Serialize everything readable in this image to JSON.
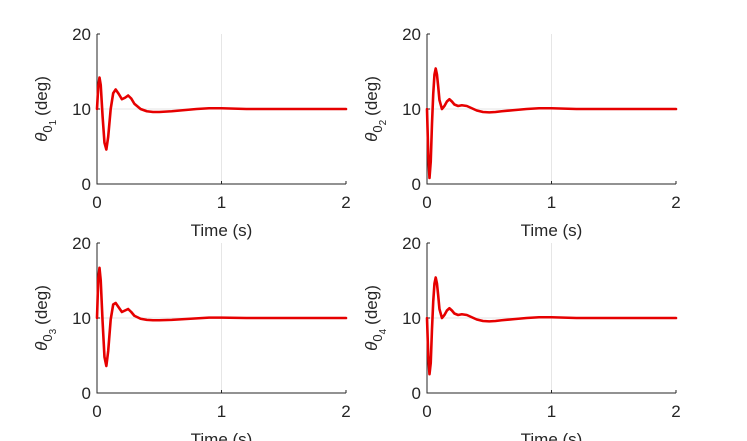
{
  "chart_data": [
    {
      "type": "line",
      "xlabel": "Time (s)",
      "ylabel": {
        "symbol": "θ",
        "sub": "0",
        "subsub": "1",
        "unit": "(deg)"
      },
      "xlim": [
        0,
        2
      ],
      "ylim": [
        0,
        20
      ],
      "xticks": [
        "0",
        "1",
        "2"
      ],
      "yticks": [
        "0",
        "10",
        "20"
      ],
      "grid": true,
      "color": "#e60000",
      "series": [
        {
          "x": [
            0,
            0.01,
            0.02,
            0.03,
            0.045,
            0.06,
            0.075,
            0.09,
            0.11,
            0.13,
            0.15,
            0.175,
            0.2,
            0.225,
            0.25,
            0.275,
            0.3,
            0.35,
            0.4,
            0.45,
            0.5,
            0.6,
            0.7,
            0.8,
            0.9,
            1.0,
            1.2,
            1.4,
            1.6,
            1.8,
            2.0
          ],
          "y": [
            10,
            13.0,
            14.2,
            13.2,
            9.0,
            5.5,
            4.6,
            6.3,
            10.0,
            12.1,
            12.6,
            12.0,
            11.3,
            11.5,
            11.8,
            11.4,
            10.7,
            10.0,
            9.7,
            9.6,
            9.6,
            9.7,
            9.85,
            10.0,
            10.1,
            10.1,
            10.0,
            10.0,
            10.0,
            10.0,
            10.0
          ]
        }
      ]
    },
    {
      "type": "line",
      "xlabel": "Time (s)",
      "ylabel": {
        "symbol": "θ",
        "sub": "0",
        "subsub": "2",
        "unit": "(deg)"
      },
      "xlim": [
        0,
        2
      ],
      "ylim": [
        0,
        20
      ],
      "xticks": [
        "0",
        "1",
        "2"
      ],
      "yticks": [
        "0",
        "10",
        "20"
      ],
      "grid": true,
      "color": "#e60000",
      "series": [
        {
          "x": [
            0,
            0.01,
            0.02,
            0.03,
            0.04,
            0.05,
            0.06,
            0.07,
            0.08,
            0.09,
            0.1,
            0.12,
            0.14,
            0.16,
            0.18,
            0.2,
            0.22,
            0.25,
            0.28,
            0.32,
            0.36,
            0.4,
            0.45,
            0.5,
            0.55,
            0.6,
            0.7,
            0.8,
            0.9,
            1.0,
            1.2,
            1.4,
            1.6,
            1.8,
            2.0
          ],
          "y": [
            10,
            4.0,
            0.8,
            3.0,
            8.0,
            12.0,
            14.6,
            15.4,
            14.6,
            13.0,
            11.2,
            10.0,
            10.4,
            11.0,
            11.3,
            11.0,
            10.6,
            10.4,
            10.5,
            10.4,
            10.1,
            9.8,
            9.6,
            9.55,
            9.6,
            9.7,
            9.85,
            10.0,
            10.1,
            10.1,
            10.0,
            10.0,
            10.0,
            10.0,
            10.0
          ]
        }
      ]
    },
    {
      "type": "line",
      "xlabel": "Time (s)",
      "ylabel": {
        "symbol": "θ",
        "sub": "0",
        "subsub": "3",
        "unit": "(deg)"
      },
      "xlim": [
        0,
        2
      ],
      "ylim": [
        0,
        20
      ],
      "xticks": [
        "0",
        "1",
        "2"
      ],
      "yticks": [
        "0",
        "10",
        "20"
      ],
      "grid": true,
      "color": "#e60000",
      "series": [
        {
          "x": [
            0,
            0.01,
            0.02,
            0.03,
            0.045,
            0.06,
            0.075,
            0.09,
            0.11,
            0.13,
            0.15,
            0.175,
            0.2,
            0.225,
            0.25,
            0.275,
            0.3,
            0.35,
            0.4,
            0.45,
            0.5,
            0.6,
            0.7,
            0.8,
            0.9,
            1.0,
            1.2,
            1.4,
            1.6,
            1.8,
            2.0
          ],
          "y": [
            10,
            15.2,
            16.7,
            15.0,
            9.5,
            4.8,
            3.6,
            5.6,
            9.8,
            11.8,
            12.0,
            11.4,
            10.8,
            11.0,
            11.2,
            10.8,
            10.3,
            9.9,
            9.75,
            9.7,
            9.7,
            9.75,
            9.85,
            9.95,
            10.05,
            10.05,
            10.0,
            10.0,
            10.0,
            10.0,
            10.0
          ]
        }
      ]
    },
    {
      "type": "line",
      "xlabel": "Time (s)",
      "ylabel": {
        "symbol": "θ",
        "sub": "0",
        "subsub": "4",
        "unit": "(deg)"
      },
      "xlim": [
        0,
        2
      ],
      "ylim": [
        0,
        20
      ],
      "xticks": [
        "0",
        "1",
        "2"
      ],
      "yticks": [
        "0",
        "10",
        "20"
      ],
      "grid": true,
      "color": "#e60000",
      "series": [
        {
          "x": [
            0,
            0.01,
            0.02,
            0.03,
            0.04,
            0.05,
            0.06,
            0.07,
            0.08,
            0.09,
            0.1,
            0.12,
            0.14,
            0.16,
            0.18,
            0.2,
            0.22,
            0.25,
            0.28,
            0.32,
            0.36,
            0.4,
            0.45,
            0.5,
            0.55,
            0.6,
            0.7,
            0.8,
            0.9,
            1.0,
            1.2,
            1.4,
            1.6,
            1.8,
            2.0
          ],
          "y": [
            10,
            5.0,
            2.5,
            4.0,
            8.5,
            12.2,
            14.6,
            15.4,
            14.6,
            13.0,
            11.2,
            10.0,
            10.4,
            11.0,
            11.3,
            11.0,
            10.6,
            10.4,
            10.5,
            10.4,
            10.1,
            9.8,
            9.6,
            9.55,
            9.6,
            9.7,
            9.85,
            10.0,
            10.1,
            10.1,
            10.0,
            10.0,
            10.0,
            10.0,
            10.0
          ]
        }
      ]
    }
  ]
}
